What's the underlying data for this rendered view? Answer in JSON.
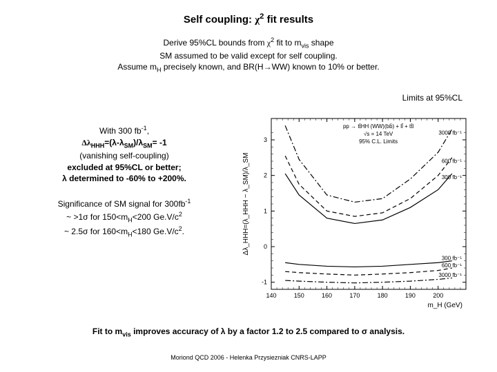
{
  "title_parts": {
    "t1": "Self coupling: ",
    "chi": "χ",
    "sup2": "2",
    "t2": " fit results"
  },
  "subtitle": {
    "l1a": "Derive 95%CL bounds from ",
    "l1chi": "χ",
    "l1sup": "2",
    "l1b": " fit to m",
    "l1sub": "vis",
    "l1c": " shape",
    "l2": "SM assumed to be valid except for self coupling.",
    "l3a": "Assume m",
    "l3sub": "H",
    "l3b": " precisely known, and BR(H→WW) known to 10% or better."
  },
  "limits_label": "Limits at 95%CL",
  "left": {
    "b1_l1a": "With 300 fb",
    "b1_l1sup": "-1",
    "b1_l1b": ",",
    "b1_l2a": "Δλ",
    "b1_l2sub1": "HHH",
    "b1_l2b": "=(λ-λ",
    "b1_l2sub2": "SM",
    "b1_l2c": ")/λ",
    "b1_l2sub3": "SM",
    "b1_l2d": "= -1",
    "b1_l3": "(vanishing self-coupling)",
    "b1_l4": "excluded at 95%CL or better;",
    "b1_l5": "λ determined to -60% to +200%.",
    "b2_l1a": "Significance of SM signal for 300fb",
    "b2_l1sup": "-1",
    "b2_l2a": "~ >1σ for 150<m",
    "b2_l2sub": "H",
    "b2_l2b": "<200 Ge.V/c",
    "b2_l2sup": "2",
    "b2_l3a": "~ 2.5σ for 160<m",
    "b2_l3sub": "H",
    "b2_l3b": "<180 Ge.V/c",
    "b2_l3sup": "2",
    "b2_l3c": "."
  },
  "bottom": {
    "a": "Fit to m",
    "sub": "vis",
    "b": " improves accuracy of λ by a factor 1.2 to 2.5 compared to σ analysis."
  },
  "footer": "Moriond QCD 2006 - Helenka Przysiezniak CNRS-LAPP",
  "chart": {
    "xlim": [
      140,
      210
    ],
    "ylim": [
      -1.2,
      3.6
    ],
    "xticks": [
      140,
      150,
      160,
      170,
      180,
      190,
      200
    ],
    "yticks": [
      -1,
      0,
      1,
      2,
      3
    ],
    "xlabel": "m_H (GeV)",
    "ylabel": "Δλ_HHH=(λ_HHH − λ_SM)/λ_SM",
    "legend": {
      "top": [
        "pp → tt̄HH (WW)(bb̄) + ll̄ + tt̄l",
        "√s = 14 TeV",
        "95% C.L. Limits"
      ],
      "curves": [
        "3000 fb⁻¹",
        "600 fb⁻¹",
        "300 fb⁻¹",
        "300 fb⁻¹",
        "600 fb⁻¹",
        "3000 fb⁻¹"
      ]
    },
    "colors": {
      "axis": "#000000",
      "tick": "#000000",
      "text": "#000000",
      "grid": "#ffffff",
      "bg": "#ffffff",
      "solid": "#000000",
      "dashed": "#000000",
      "dashdot": "#000000"
    },
    "curves": [
      {
        "name": "upper_3000",
        "style": "dashdot",
        "x": [
          145,
          150,
          160,
          170,
          180,
          190,
          200,
          205
        ],
        "y": [
          3.4,
          2.45,
          1.45,
          1.25,
          1.35,
          1.9,
          2.65,
          3.3
        ]
      },
      {
        "name": "upper_600",
        "style": "dashed",
        "x": [
          145,
          150,
          160,
          170,
          180,
          190,
          200,
          205
        ],
        "y": [
          2.55,
          1.75,
          1.0,
          0.85,
          0.95,
          1.35,
          2.0,
          2.5
        ]
      },
      {
        "name": "upper_300",
        "style": "solid",
        "x": [
          145,
          150,
          160,
          170,
          180,
          190,
          200,
          205
        ],
        "y": [
          2.05,
          1.45,
          0.8,
          0.65,
          0.75,
          1.1,
          1.6,
          2.05
        ]
      },
      {
        "name": "lower_300",
        "style": "solid",
        "x": [
          145,
          150,
          160,
          170,
          180,
          190,
          200,
          205
        ],
        "y": [
          -0.45,
          -0.5,
          -0.55,
          -0.57,
          -0.55,
          -0.5,
          -0.45,
          -0.4
        ]
      },
      {
        "name": "lower_600",
        "style": "dashed",
        "x": [
          145,
          150,
          160,
          170,
          180,
          190,
          200,
          205
        ],
        "y": [
          -0.7,
          -0.73,
          -0.77,
          -0.8,
          -0.77,
          -0.73,
          -0.67,
          -0.6
        ]
      },
      {
        "name": "lower_3000",
        "style": "dashdot",
        "x": [
          145,
          150,
          160,
          170,
          180,
          190,
          200,
          205
        ],
        "y": [
          -0.95,
          -0.97,
          -1.0,
          -1.02,
          -1.0,
          -0.97,
          -0.92,
          -0.88
        ]
      }
    ],
    "fontsize": {
      "axis_label": 10,
      "tick": 9,
      "legend": 8
    }
  }
}
